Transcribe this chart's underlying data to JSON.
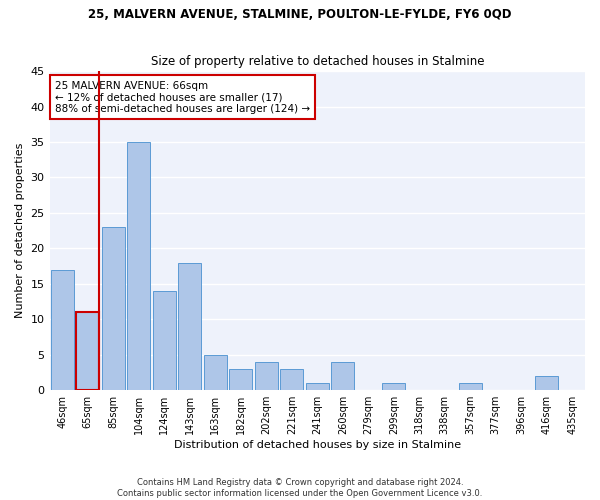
{
  "title": "25, MALVERN AVENUE, STALMINE, POULTON-LE-FYLDE, FY6 0QD",
  "subtitle": "Size of property relative to detached houses in Stalmine",
  "xlabel": "Distribution of detached houses by size in Stalmine",
  "ylabel": "Number of detached properties",
  "categories": [
    "46sqm",
    "65sqm",
    "85sqm",
    "104sqm",
    "124sqm",
    "143sqm",
    "163sqm",
    "182sqm",
    "202sqm",
    "221sqm",
    "241sqm",
    "260sqm",
    "279sqm",
    "299sqm",
    "318sqm",
    "338sqm",
    "357sqm",
    "377sqm",
    "396sqm",
    "416sqm",
    "435sqm"
  ],
  "values": [
    17,
    11,
    23,
    35,
    14,
    18,
    5,
    3,
    4,
    3,
    1,
    4,
    0,
    1,
    0,
    0,
    1,
    0,
    0,
    2,
    0
  ],
  "bar_color": "#aec6e8",
  "bar_edge_color": "#5b9bd5",
  "highlight_bar_index": 1,
  "highlight_color": "#cc0000",
  "annotation_text": "25 MALVERN AVENUE: 66sqm\n← 12% of detached houses are smaller (17)\n88% of semi-detached houses are larger (124) →",
  "annotation_box_color": "#ffffff",
  "annotation_box_edge": "#cc0000",
  "ylim": [
    0,
    45
  ],
  "yticks": [
    0,
    5,
    10,
    15,
    20,
    25,
    30,
    35,
    40,
    45
  ],
  "bg_color": "#eef2fb",
  "grid_color": "#ffffff",
  "footer_line1": "Contains HM Land Registry data © Crown copyright and database right 2024.",
  "footer_line2": "Contains public sector information licensed under the Open Government Licence v3.0."
}
